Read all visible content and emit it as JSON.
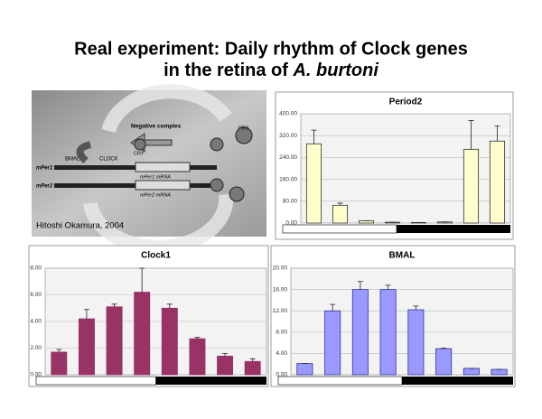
{
  "title": {
    "line1": "Real experiment: Daily rhythm of Clock genes",
    "line2": "in the retina of ",
    "species": "A. burtoni"
  },
  "diagram": {
    "credit": "Hitoshi Okamura, 2004",
    "labels": [
      "Negative complex",
      "BMAL",
      "CLOCK",
      "mPer1",
      "mPer2",
      "mPer1 mRNA",
      "mPer2 mRNA",
      "PER",
      "CRY"
    ]
  },
  "chart_data": [
    {
      "type": "bar",
      "title": "Period2",
      "color": "#ffffcc",
      "edge": "#333333",
      "values": [
        290,
        65,
        8,
        3,
        2,
        4,
        270,
        300
      ],
      "errors": [
        50,
        8,
        0,
        0,
        0,
        0,
        105,
        55
      ],
      "ylim": [
        0,
        400
      ],
      "yticks": [
        {
          "value": 0,
          "label": "0.00"
        },
        {
          "value": 80,
          "label": "80.00"
        },
        {
          "value": 160,
          "label": "160.00"
        },
        {
          "value": 240,
          "label": "240.00"
        },
        {
          "value": 320,
          "label": "320.00"
        },
        {
          "value": 400,
          "label": "400.00"
        }
      ],
      "grid": true
    },
    {
      "type": "bar",
      "title": "Clock1",
      "color": "#993366",
      "edge": "#993366",
      "values": [
        1.7,
        4.2,
        5.1,
        6.2,
        5.0,
        2.7,
        1.4,
        1.0
      ],
      "errors": [
        0.2,
        0.7,
        0.2,
        1.8,
        0.3,
        0.1,
        0.2,
        0.2
      ],
      "ylim": [
        0,
        8
      ],
      "yticks": [
        {
          "value": 0,
          "label": "0.00"
        },
        {
          "value": 2,
          "label": "2.00"
        },
        {
          "value": 4,
          "label": "4.00"
        },
        {
          "value": 6,
          "label": "6.00"
        },
        {
          "value": 8,
          "label": "8.00"
        }
      ],
      "grid": true
    },
    {
      "type": "bar",
      "title": "BMAL",
      "color": "#9999ff",
      "edge": "#333399",
      "values": [
        2.1,
        12.0,
        16.0,
        16.0,
        12.2,
        4.9,
        1.2,
        1.0
      ],
      "errors": [
        0,
        1.2,
        1.5,
        0.8,
        0.7,
        0.1,
        0,
        0
      ],
      "ylim": [
        0,
        20
      ],
      "yticks": [
        {
          "value": 0,
          "label": "0.00"
        },
        {
          "value": 4,
          "label": "4.00"
        },
        {
          "value": 8,
          "label": "8.00"
        },
        {
          "value": 12,
          "label": "12.00"
        },
        {
          "value": 16,
          "label": "16.00"
        },
        {
          "value": 20,
          "label": "20.00"
        }
      ],
      "grid": true
    }
  ]
}
